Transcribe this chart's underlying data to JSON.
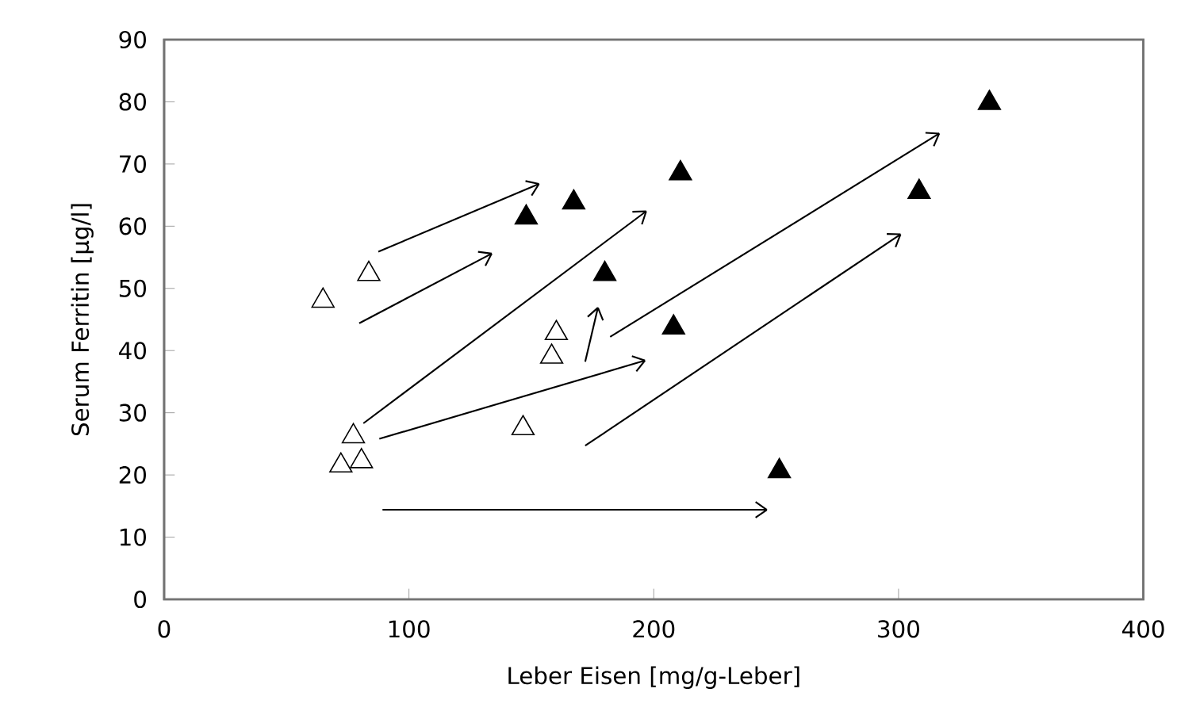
{
  "chart_data": {
    "type": "scatter",
    "xlabel": "Leber Eisen [mg/g-Leber]",
    "ylabel": "Serum Ferritin [µg/l]",
    "xlim": [
      0,
      400
    ],
    "ylim": [
      0,
      90
    ],
    "xticks": [
      0,
      100,
      200,
      300,
      400
    ],
    "yticks": [
      0,
      10,
      20,
      30,
      40,
      50,
      60,
      70,
      80,
      90
    ],
    "grid": false,
    "marker": "triangle",
    "series": [
      {
        "color": "#ffffff",
        "x": [
          64.9,
          83.6,
          77.3,
          72.2,
          80.6,
          146.6,
          160.2,
          158.3
        ],
        "values": [
          48.0,
          52.3,
          26.2,
          21.5,
          22.2,
          27.5,
          42.8,
          39.0
        ]
      },
      {
        "color": "#000000",
        "x": [
          147.9,
          167.3,
          180.0,
          210.9,
          208.1,
          251.3,
          308.4,
          337.1
        ],
        "values": [
          61.4,
          63.8,
          52.3,
          68.5,
          43.7,
          20.6,
          65.5,
          79.8
        ]
      },
      {
        "type": "line",
        "marker": "none",
        "color": "#000000",
        "x": [
          87.5,
          153.1
        ],
        "values": [
          55.9,
          66.8
        ]
      },
      {
        "type": "line",
        "marker": "none",
        "color": "#000000",
        "x": [
          79.7,
          133.8
        ],
        "values": [
          44.4,
          55.6
        ]
      },
      {
        "type": "line",
        "marker": "none",
        "color": "#000000",
        "x": [
          81.4,
          196.9
        ],
        "values": [
          28.3,
          62.4
        ]
      },
      {
        "type": "line",
        "marker": "none",
        "color": "#000000",
        "x": [
          87.9,
          196.4
        ],
        "values": [
          25.8,
          38.4
        ]
      },
      {
        "type": "line",
        "marker": "none",
        "color": "#000000",
        "x": [
          172.0,
          177.2
        ],
        "values": [
          38.2,
          46.9
        ]
      },
      {
        "type": "line",
        "marker": "none",
        "color": "#000000",
        "x": [
          89.2,
          246.2
        ],
        "values": [
          14.4,
          14.4
        ]
      },
      {
        "type": "line",
        "marker": "none",
        "color": "#000000",
        "x": [
          182.2,
          316.6
        ],
        "values": [
          42.2,
          74.9
        ]
      },
      {
        "type": "line",
        "marker": "none",
        "color": "#000000",
        "x": [
          172.0,
          300.8
        ],
        "values": [
          24.7,
          58.7
        ]
      }
    ]
  }
}
